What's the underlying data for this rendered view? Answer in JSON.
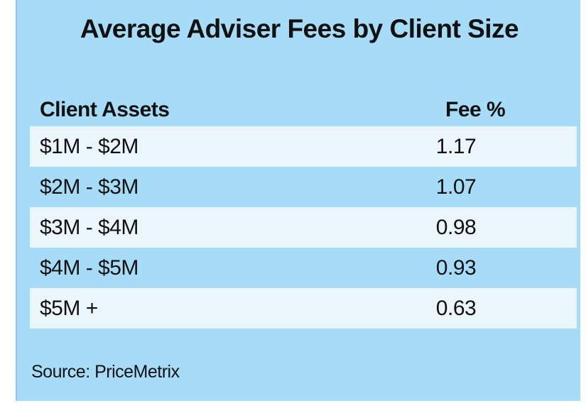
{
  "title": "Average Adviser Fees by Client Size",
  "source": "Source: PriceMetrix",
  "colors": {
    "background": "#a6dcf8",
    "row_band": "#eaf5fc",
    "text": "#111111"
  },
  "chart_data": {
    "type": "table",
    "title": "Average Adviser Fees by Client Size",
    "columns": [
      "Client Assets",
      "Fee %"
    ],
    "rows": [
      {
        "assets": "$1M - $2M",
        "fee": "1.17"
      },
      {
        "assets": "$2M - $3M",
        "fee": "1.07"
      },
      {
        "assets": "$3M - $4M",
        "fee": "0.98"
      },
      {
        "assets": "$4M - $5M",
        "fee": "0.93"
      },
      {
        "assets": "$5M +",
        "fee": "0.63"
      }
    ],
    "values": [
      1.17,
      1.07,
      0.98,
      0.93,
      0.63
    ],
    "categories": [
      "$1M - $2M",
      "$2M - $3M",
      "$3M - $4M",
      "$4M - $5M",
      "$5M +"
    ]
  }
}
